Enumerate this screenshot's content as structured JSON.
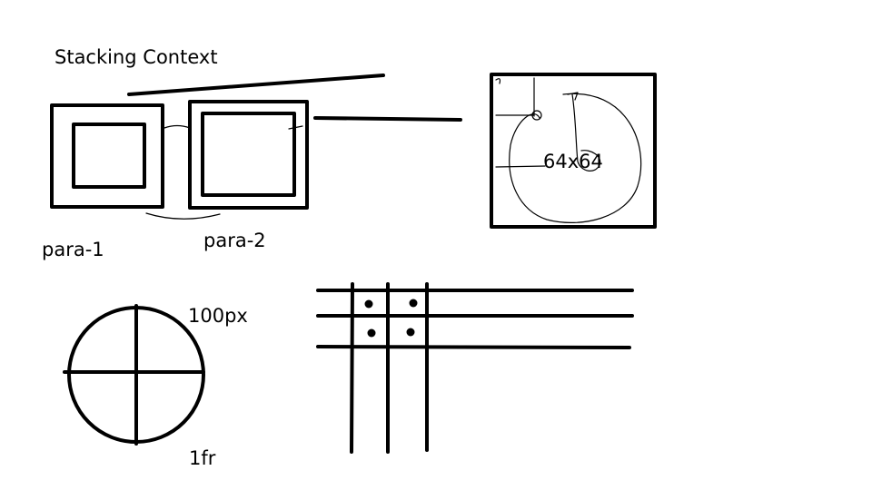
{
  "labels": {
    "title": "Stacking Context",
    "para_1": "para-1",
    "para_2": "para-2",
    "box_size": "64x64",
    "row_track": "100px",
    "col_track": "1fr"
  },
  "colors": {
    "background": "#ffffff",
    "ink": "#000000"
  },
  "icons": {
    "circle_sketch": "circle-with-crosshair-icon",
    "grid_sketch": "grid-lines-with-dots-icon"
  }
}
